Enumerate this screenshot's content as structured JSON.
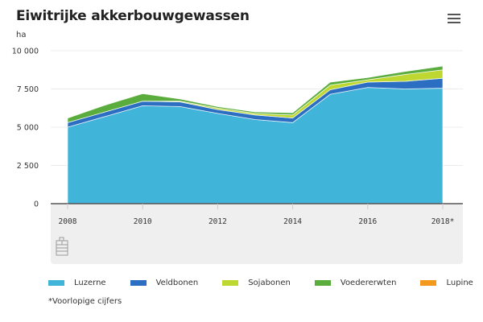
{
  "header": {
    "title": "Eiwitrijke akkerbouwgewassen",
    "unit": "ha",
    "menu_icon": "hamburger-menu-icon"
  },
  "footnote": "*Voorlopige cijfers",
  "source_icon": "data-source-icon",
  "chart_data": {
    "type": "area",
    "stacked": true,
    "title": "Eiwitrijke akkerbouwgewassen",
    "ylabel": "ha",
    "xlabel": "",
    "ylim": [
      0,
      10000
    ],
    "yticks": [
      0,
      2500,
      5000,
      7500,
      10000
    ],
    "ytick_labels": [
      "0",
      "2 500",
      "5 000",
      "7 500",
      "10 000"
    ],
    "x": [
      2008,
      2009,
      2010,
      2011,
      2012,
      2013,
      2014,
      2015,
      2016,
      2017,
      2018
    ],
    "xticks": [
      2008,
      2010,
      2012,
      2014,
      2016,
      2018
    ],
    "xtick_labels": [
      "2008",
      "2010",
      "2012",
      "2014",
      "2016",
      "2018*"
    ],
    "grid": true,
    "legend_position": "bottom",
    "series": [
      {
        "name": "Luzerne",
        "color": "#40b4d9",
        "values": [
          5000,
          5700,
          6400,
          6350,
          5900,
          5500,
          5300,
          7150,
          7600,
          7500,
          7550
        ]
      },
      {
        "name": "Veldbonen",
        "color": "#2c6fc2",
        "values": [
          300,
          300,
          300,
          300,
          250,
          300,
          300,
          300,
          350,
          500,
          650
        ]
      },
      {
        "name": "Sojabonen",
        "color": "#bfd731",
        "values": [
          0,
          0,
          0,
          50,
          100,
          100,
          200,
          300,
          150,
          450,
          550
        ]
      },
      {
        "name": "Voedererwten",
        "color": "#5aac3c",
        "values": [
          300,
          450,
          500,
          150,
          100,
          100,
          150,
          200,
          150,
          200,
          250
        ]
      },
      {
        "name": "Lupine",
        "color": "#f39a1e",
        "values": [
          0,
          0,
          0,
          0,
          0,
          0,
          0,
          0,
          0,
          0,
          0
        ]
      }
    ]
  }
}
